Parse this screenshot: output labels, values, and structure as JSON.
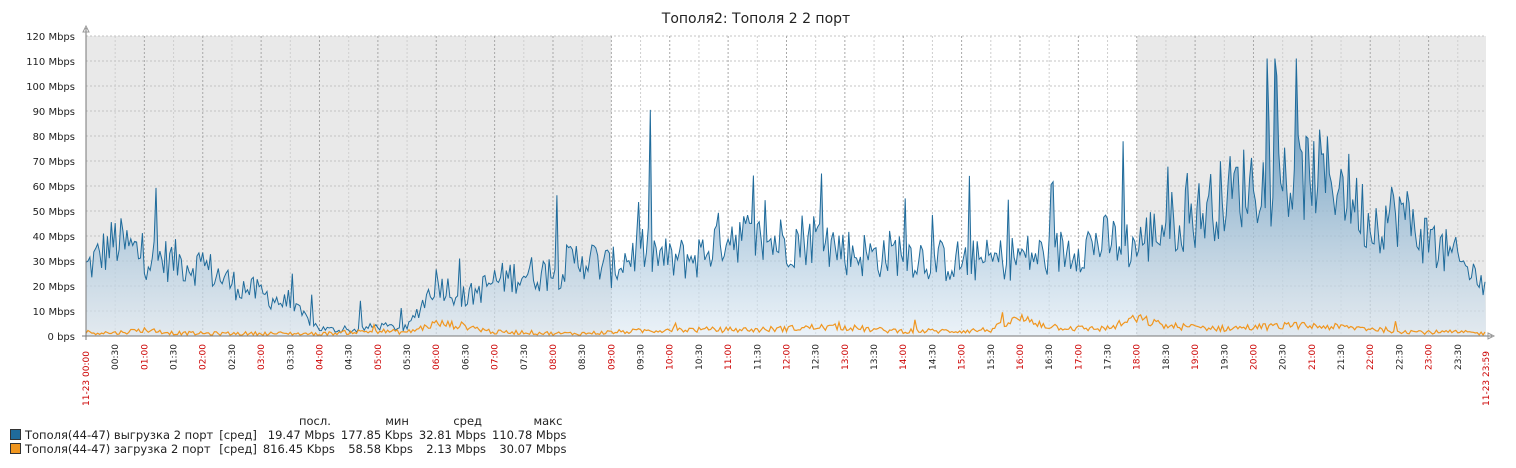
{
  "chart_data": {
    "type": "area",
    "title": "Тополя2: Тополя 2  2 порт",
    "ylim": [
      0,
      120
    ],
    "y_unit": "Mbps",
    "y_ticks": [
      "0 bps",
      "10 Mbps",
      "20 Mbps",
      "30 Mbps",
      "40 Mbps",
      "50 Mbps",
      "60 Mbps",
      "70 Mbps",
      "80 Mbps",
      "90 Mbps",
      "100 Mbps",
      "110 Mbps",
      "120 Mbps"
    ],
    "x_tick_labels": [
      "00:30",
      "01:00",
      "01:30",
      "02:00",
      "02:30",
      "03:00",
      "03:30",
      "04:00",
      "04:30",
      "05:00",
      "05:30",
      "06:00",
      "06:30",
      "07:00",
      "07:30",
      "08:00",
      "08:30",
      "09:00",
      "09:30",
      "10:00",
      "10:30",
      "11:00",
      "11:30",
      "12:00",
      "12:30",
      "13:00",
      "13:30",
      "14:00",
      "14:30",
      "15:00",
      "15:30",
      "16:00",
      "16:30",
      "17:00",
      "17:30",
      "18:00",
      "18:30",
      "19:00",
      "19:30",
      "20:00",
      "20:30",
      "21:00",
      "21:30",
      "22:00",
      "22:30",
      "23:00",
      "23:30"
    ],
    "x_start_label": "11-23 00:00",
    "x_end_label": "11-23 23:59",
    "shaded_ranges": [
      [
        "00:00",
        "09:00"
      ],
      [
        "18:00",
        "23:59"
      ]
    ],
    "grid": true,
    "legend_position": "bottom-left",
    "x": [
      "00:00",
      "00:30",
      "01:00",
      "01:30",
      "02:00",
      "02:30",
      "03:00",
      "03:30",
      "04:00",
      "04:30",
      "05:00",
      "05:30",
      "06:00",
      "06:30",
      "07:00",
      "07:30",
      "08:00",
      "08:30",
      "09:00",
      "09:30",
      "10:00",
      "10:30",
      "11:00",
      "11:30",
      "12:00",
      "12:30",
      "13:00",
      "13:30",
      "14:00",
      "14:30",
      "15:00",
      "15:30",
      "16:00",
      "16:30",
      "17:00",
      "17:30",
      "18:00",
      "18:30",
      "19:00",
      "19:30",
      "20:00",
      "20:30",
      "21:00",
      "21:30",
      "22:00",
      "22:30",
      "23:00",
      "23:30",
      "23:59"
    ],
    "series": [
      {
        "name": "Тополя(44-47) выгрузка 2 порт",
        "color": "#1f6b9b",
        "values": [
          27,
          38,
          32,
          30,
          28,
          21,
          17,
          12,
          3,
          2,
          4,
          3,
          22,
          15,
          22,
          25,
          25,
          32,
          27,
          35,
          30,
          32,
          42,
          38,
          38,
          40,
          34,
          32,
          34,
          30,
          30,
          30,
          32,
          32,
          36,
          38,
          36,
          45,
          48,
          56,
          62,
          60,
          65,
          62,
          45,
          50,
          38,
          30,
          20
        ],
        "stats": {
          "last": "19.47 Mbps",
          "min": "177.85 Kbps",
          "avg": "32.81 Mbps",
          "max": "110.78 Mbps"
        }
      },
      {
        "name": "Тополя(44-47) загрузка 2 порт",
        "color": "#f0961f",
        "values": [
          1.5,
          1.2,
          2.5,
          1.2,
          1,
          1,
          1,
          1,
          0.8,
          1.5,
          2,
          1.5,
          5,
          4,
          1.5,
          1.5,
          1,
          1,
          1.5,
          2,
          2.5,
          2.5,
          2.5,
          2.5,
          3,
          3.5,
          3.5,
          2.5,
          2,
          2,
          2,
          2.5,
          7,
          4,
          3,
          3,
          7,
          4,
          3.5,
          3,
          3.5,
          4,
          4,
          3.5,
          3,
          2,
          1.5,
          1.5,
          1
        ],
        "stats": {
          "last": "816.45 Kbps",
          "min": "58.58 Kbps",
          "avg": "2.13 Mbps",
          "max": "30.07 Mbps"
        }
      }
    ]
  },
  "legend": {
    "headers": {
      "last": "посл.",
      "min": "мин",
      "avg": "сред",
      "max": "макс"
    },
    "func_label": "[сред]"
  }
}
